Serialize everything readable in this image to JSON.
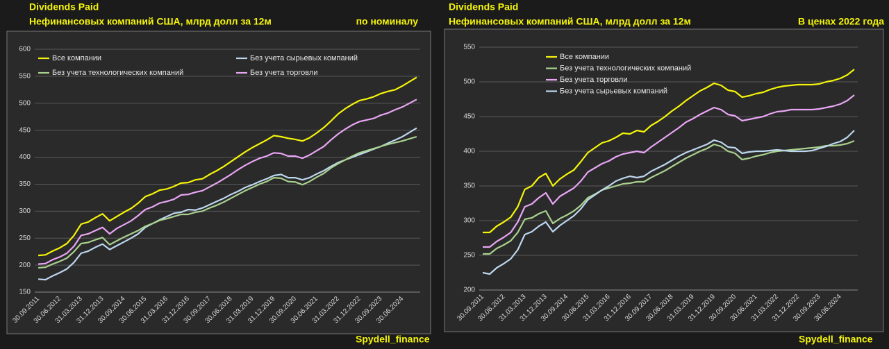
{
  "chart_data": [
    {
      "type": "line",
      "title": "Dividends Paid",
      "subtitle": "Нефинансовых компаний США, млрд долл за 12м",
      "note": "по номиналу",
      "source": "Spydell_finance",
      "categories": [
        "30.09.2011",
        null,
        null,
        "30.06.2012",
        null,
        null,
        "31.03.2013",
        null,
        null,
        "31.12.2013",
        null,
        null,
        "30.09.2014",
        null,
        null,
        "30.06.2015",
        null,
        null,
        "31.03.2016",
        null,
        null,
        "31.12.2016",
        null,
        null,
        "30.09.2017",
        null,
        null,
        "30.06.2018",
        null,
        null,
        "31.03.2019",
        null,
        null,
        "31.12.2019",
        null,
        null,
        "30.09.2020",
        null,
        null,
        "30.06.2021",
        null,
        null,
        "31.03.2022",
        null,
        null,
        "31.12.2022",
        null,
        null,
        "30.09.2023",
        null,
        null,
        "30.06.2024",
        null,
        null
      ],
      "ylim": [
        150,
        600
      ],
      "yticks": [
        150,
        200,
        250,
        300,
        350,
        400,
        450,
        500,
        550,
        600
      ],
      "grid": true,
      "series": [
        {
          "name": "Все компании",
          "color": "#f5f50a",
          "values": [
            218,
            219,
            226,
            232,
            240,
            255,
            276,
            280,
            288,
            295,
            282,
            290,
            298,
            305,
            315,
            327,
            332,
            339,
            341,
            346,
            352,
            353,
            358,
            360,
            368,
            375,
            383,
            392,
            401,
            410,
            418,
            425,
            432,
            440,
            438,
            435,
            433,
            430,
            436,
            445,
            455,
            467,
            480,
            490,
            498,
            505,
            508,
            512,
            518,
            522,
            525,
            532,
            540,
            548
          ]
        },
        {
          "name": "Без учета сырьевых компаний",
          "color": "#bdd7ee",
          "values": [
            174,
            173,
            180,
            186,
            193,
            205,
            222,
            226,
            233,
            239,
            229,
            236,
            243,
            250,
            258,
            270,
            277,
            284,
            290,
            296,
            298,
            303,
            302,
            306,
            312,
            318,
            324,
            331,
            337,
            344,
            349,
            355,
            360,
            366,
            368,
            362,
            362,
            358,
            362,
            369,
            375,
            383,
            390,
            395,
            400,
            405,
            410,
            415,
            420,
            426,
            432,
            438,
            446,
            454
          ]
        },
        {
          "name": "Без учета технологических компаний",
          "color": "#a9d18e",
          "values": [
            195,
            196,
            202,
            207,
            213,
            225,
            240,
            242,
            247,
            251,
            238,
            245,
            252,
            258,
            264,
            272,
            277,
            283,
            286,
            290,
            294,
            294,
            298,
            300,
            306,
            311,
            317,
            324,
            331,
            338,
            344,
            350,
            355,
            362,
            361,
            355,
            354,
            349,
            355,
            363,
            370,
            380,
            388,
            395,
            402,
            408,
            412,
            416,
            420,
            424,
            427,
            430,
            434,
            438
          ]
        },
        {
          "name": "Без учета торговли",
          "color": "#e9a6f5",
          "values": [
            202,
            203,
            210,
            215,
            222,
            235,
            255,
            258,
            264,
            270,
            258,
            268,
            275,
            282,
            292,
            303,
            308,
            315,
            318,
            322,
            330,
            331,
            335,
            338,
            345,
            352,
            360,
            368,
            377,
            385,
            392,
            398,
            402,
            408,
            407,
            402,
            402,
            398,
            404,
            412,
            420,
            432,
            443,
            452,
            460,
            466,
            469,
            472,
            478,
            482,
            488,
            493,
            500,
            507
          ]
        }
      ]
    },
    {
      "type": "line",
      "title": "Dividends Paid",
      "subtitle": "Нефинансовых компаний США, млрд долл за 12м",
      "note": "В ценах 2022 года",
      "source": "Spydell_finance",
      "categories": [
        "30.09.2011",
        null,
        null,
        "30.06.2012",
        null,
        null,
        "31.03.2013",
        null,
        null,
        "31.12.2013",
        null,
        null,
        "30.09.2014",
        null,
        null,
        "30.06.2015",
        null,
        null,
        "31.03.2016",
        null,
        null,
        "31.12.2016",
        null,
        null,
        "30.09.2017",
        null,
        null,
        "30.06.2018",
        null,
        null,
        "31.03.2019",
        null,
        null,
        "31.12.2019",
        null,
        null,
        "30.09.2020",
        null,
        null,
        "30.06.2021",
        null,
        null,
        "31.03.2022",
        null,
        null,
        "31.12.2022",
        null,
        null,
        "30.09.2023",
        null,
        null,
        "30.06.2024",
        null,
        null
      ],
      "ylim": [
        200,
        550
      ],
      "yticks": [
        200,
        250,
        300,
        350,
        400,
        450,
        500,
        550
      ],
      "grid": true,
      "series": [
        {
          "name": "Все компании",
          "color": "#f5f50a",
          "values": [
            283,
            283,
            292,
            298,
            305,
            320,
            345,
            350,
            362,
            368,
            350,
            360,
            367,
            373,
            385,
            398,
            405,
            412,
            415,
            420,
            426,
            425,
            430,
            428,
            437,
            443,
            450,
            458,
            465,
            473,
            480,
            487,
            492,
            498,
            495,
            488,
            486,
            478,
            480,
            483,
            485,
            489,
            492,
            494,
            495,
            496,
            496,
            496,
            497,
            500,
            502,
            505,
            510,
            518
          ]
        },
        {
          "name": "Без учета технологических компаний",
          "color": "#a9d18e",
          "values": [
            252,
            252,
            260,
            265,
            271,
            283,
            302,
            304,
            310,
            314,
            296,
            303,
            308,
            314,
            322,
            333,
            338,
            344,
            347,
            350,
            353,
            354,
            356,
            356,
            362,
            367,
            372,
            378,
            384,
            390,
            395,
            400,
            404,
            410,
            407,
            400,
            397,
            388,
            390,
            393,
            395,
            398,
            400,
            401,
            402,
            403,
            404,
            405,
            406,
            408,
            408,
            409,
            411,
            415
          ]
        },
        {
          "name": "Без учета торговли",
          "color": "#e9a6f5",
          "values": [
            262,
            262,
            270,
            276,
            283,
            298,
            320,
            324,
            333,
            340,
            324,
            335,
            341,
            347,
            357,
            370,
            376,
            382,
            386,
            392,
            396,
            398,
            400,
            398,
            406,
            413,
            420,
            427,
            434,
            442,
            447,
            453,
            458,
            463,
            460,
            453,
            451,
            444,
            446,
            448,
            450,
            454,
            457,
            458,
            460,
            460,
            460,
            460,
            461,
            463,
            465,
            468,
            473,
            481
          ]
        },
        {
          "name": "Без учета сырьевых компаний",
          "color": "#bdd7ee",
          "values": [
            225,
            223,
            232,
            238,
            245,
            258,
            280,
            284,
            292,
            298,
            284,
            293,
            300,
            307,
            317,
            330,
            337,
            344,
            350,
            357,
            361,
            364,
            362,
            364,
            371,
            376,
            381,
            387,
            393,
            398,
            402,
            406,
            410,
            416,
            413,
            406,
            405,
            397,
            399,
            400,
            400,
            401,
            402,
            401,
            400,
            400,
            400,
            401,
            404,
            407,
            411,
            414,
            420,
            430
          ]
        }
      ]
    }
  ]
}
